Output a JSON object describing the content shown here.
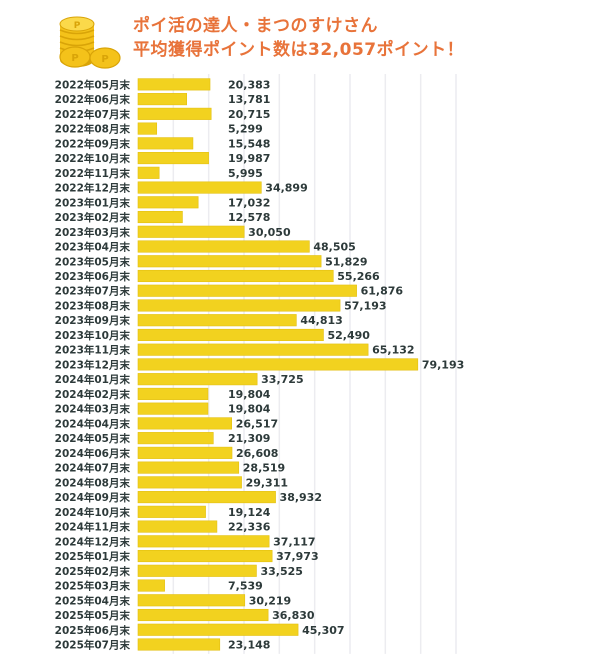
{
  "header": {
    "title_line1": "ポイ活の達人・まつのすけさん",
    "title_line2": "平均獲得ポイント数は32,057ポイント！",
    "icon": "coins-icon"
  },
  "colors": {
    "title": "#e8733a",
    "bar": "#f2d21f",
    "bar_edge": "#e3c012",
    "text": "#2d3a3a",
    "grid": "#ececf0"
  },
  "chart_data": {
    "type": "bar",
    "orientation": "horizontal",
    "title": "ポイ活の達人・まつのすけさん 平均獲得ポイント数は32,057ポイント！",
    "xlabel": "",
    "ylabel": "",
    "xlim": [
      0,
      90000
    ],
    "grid_step": 10000,
    "grid": true,
    "legend": "none",
    "categories": [
      "2022年05月末",
      "2022年06月末",
      "2022年07月末",
      "2022年08月末",
      "2022年09月末",
      "2022年10月末",
      "2022年11月末",
      "2022年12月末",
      "2023年01月末",
      "2023年02月末",
      "2023年03月末",
      "2023年04月末",
      "2023年05月末",
      "2023年06月末",
      "2023年07月末",
      "2023年08月末",
      "2023年09月末",
      "2023年10月末",
      "2023年11月末",
      "2023年12月末",
      "2024年01月末",
      "2024年02月末",
      "2024年03月末",
      "2024年04月末",
      "2024年05月末",
      "2024年06月末",
      "2024年07月末",
      "2024年08月末",
      "2024年09月末",
      "2024年10月末",
      "2024年11月末",
      "2024年12月末",
      "2025年01月末",
      "2025年02月末",
      "2025年03月末",
      "2025年04月末",
      "2025年05月末",
      "2025年06月末",
      "2025年07月末"
    ],
    "values": [
      20383,
      13781,
      20715,
      5299,
      15548,
      19987,
      5995,
      34899,
      17032,
      12578,
      30050,
      48505,
      51829,
      55266,
      61876,
      57193,
      44813,
      52490,
      65132,
      79193,
      33725,
      19804,
      19804,
      26517,
      21309,
      26608,
      28519,
      29311,
      38932,
      19124,
      22336,
      37117,
      37973,
      33525,
      7539,
      30219,
      36830,
      45307,
      23148
    ],
    "value_labels": [
      "20,383",
      "13,781",
      "20,715",
      "5,299",
      "15,548",
      "19,987",
      "5,995",
      "34,899",
      "17,032",
      "12,578",
      "30,050",
      "48,505",
      "51,829",
      "55,266",
      "61,876",
      "57,193",
      "44,813",
      "52,490",
      "65,132",
      "79,193",
      "33,725",
      "19,804",
      "19,804",
      "26,517",
      "21,309",
      "26,608",
      "28,519",
      "29,311",
      "38,932",
      "19,124",
      "22,336",
      "37,117",
      "37,973",
      "33,525",
      "7,539",
      "30,219",
      "36,830",
      "45,307",
      "23,148"
    ],
    "average": 32057
  }
}
